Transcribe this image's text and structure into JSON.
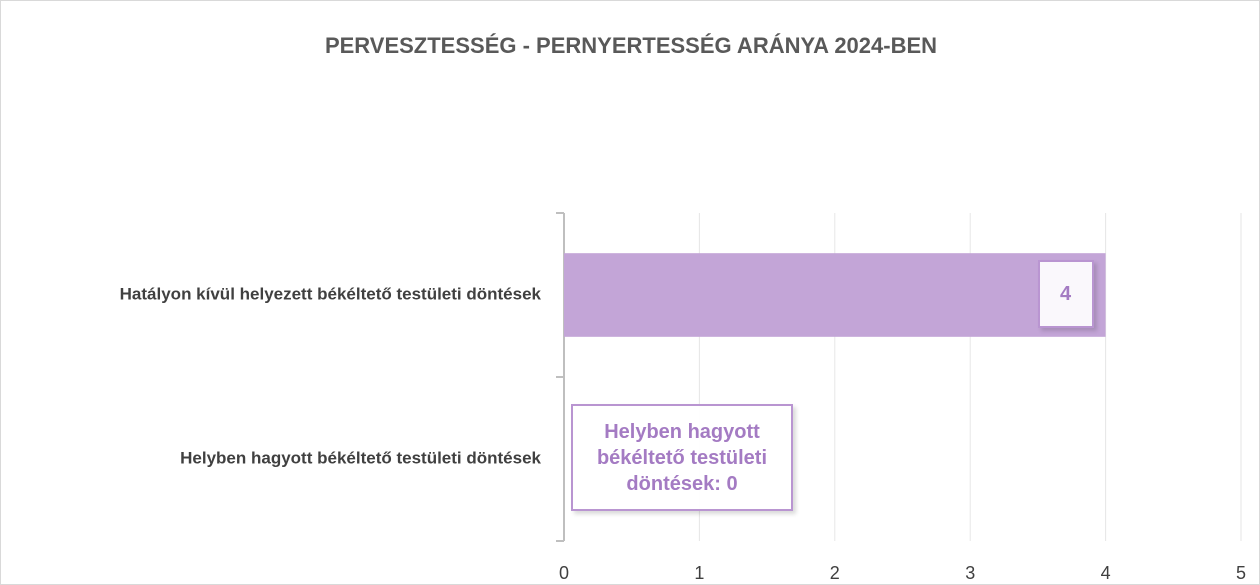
{
  "chart_data": {
    "type": "bar",
    "orientation": "horizontal",
    "title": "PERVESZTESSÉG - PERNYERTESSÉG ARÁNYA 2024-BEN",
    "categories": [
      "Hatályon kívül helyezett békéltető testületi döntések",
      "Helyben hagyott békéltető testületi döntések"
    ],
    "values": [
      4,
      0
    ],
    "value_labels": [
      "4",
      "Helyben hagyott békéltető testületi döntések: 0"
    ],
    "color": "#c3a5d7",
    "xlim": [
      0,
      5
    ],
    "xticks": [
      0,
      1,
      2,
      3,
      4,
      5
    ],
    "grid": true
  }
}
